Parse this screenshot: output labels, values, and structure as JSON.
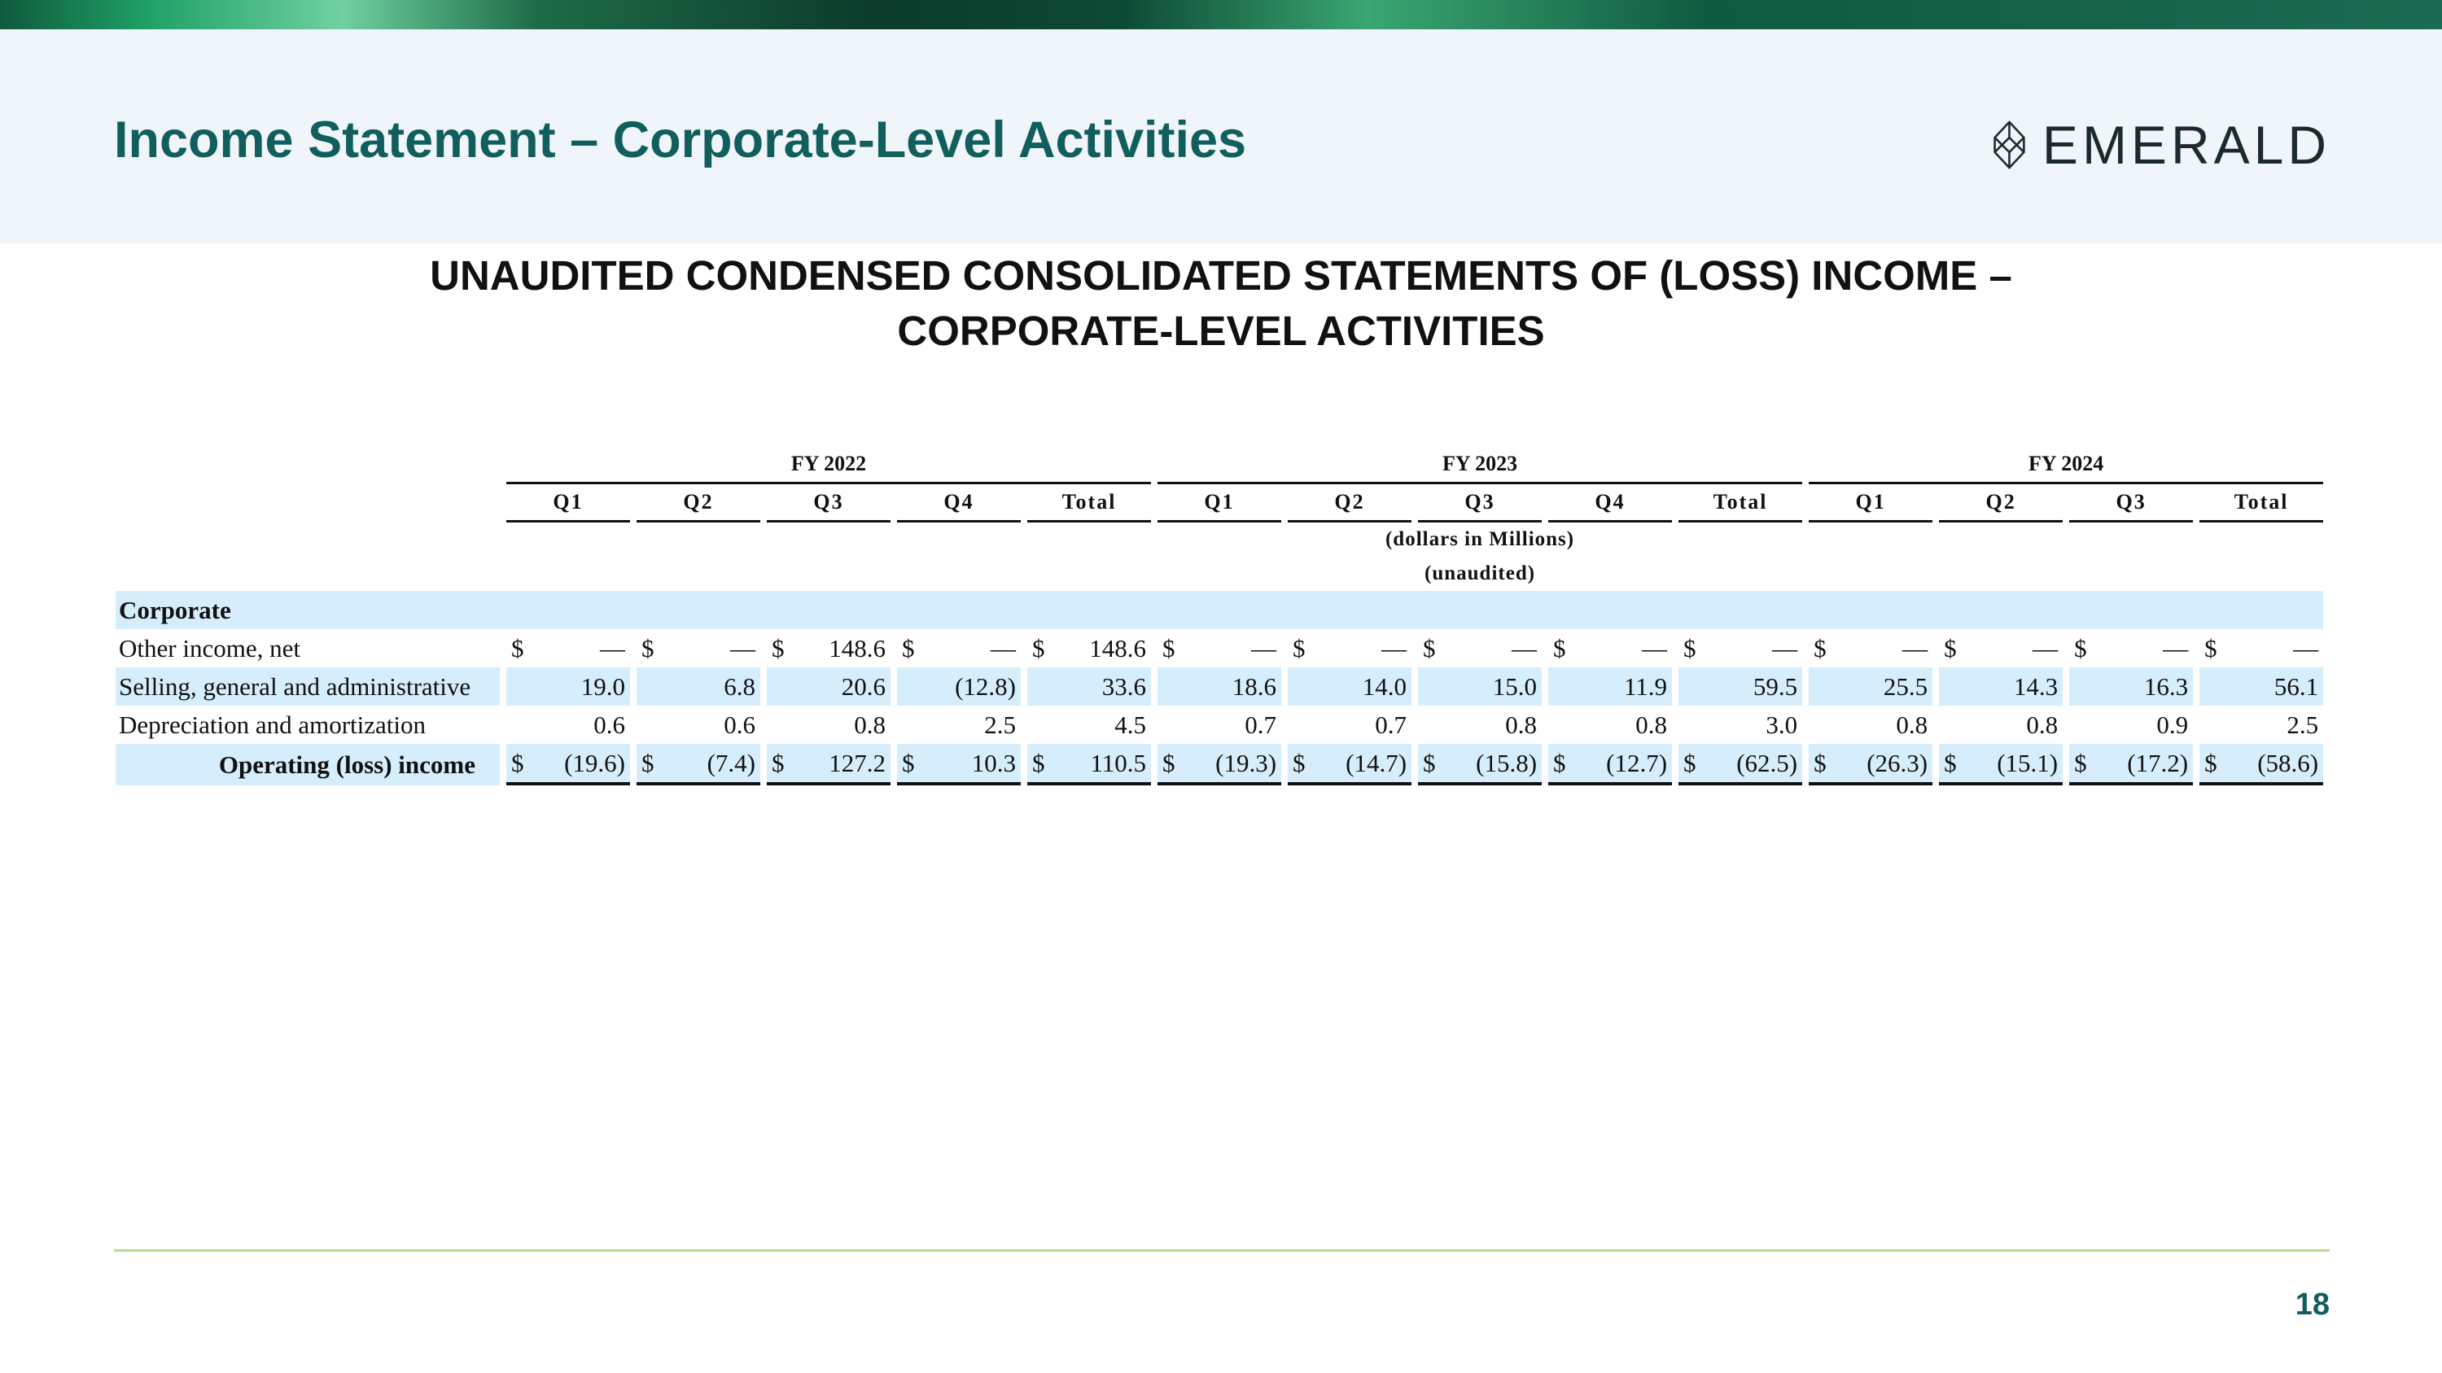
{
  "header": {
    "title": "Income Statement – Corporate-Level Activities",
    "logo_text": "EMERALD"
  },
  "statement_title_line1": "UNAUDITED CONDENSED CONSOLIDATED STATEMENTS OF (LOSS) INCOME –",
  "statement_title_line2": "CORPORATE-LEVEL ACTIVITIES",
  "table": {
    "fiscal_years": [
      "FY 2022",
      "FY 2023",
      "FY 2024"
    ],
    "columns": [
      "Q1",
      "Q2",
      "Q3",
      "Q4",
      "Total",
      "Q1",
      "Q2",
      "Q3",
      "Q4",
      "Total",
      "Q1",
      "Q2",
      "Q3",
      "Total"
    ],
    "units_line1": "(dollars in Millions)",
    "units_line2": "(unaudited)",
    "section_label": "Corporate",
    "rows": [
      {
        "label": "Other income, net",
        "currency": true,
        "values": [
          "—",
          "—",
          "148.6",
          "—",
          "148.6",
          "—",
          "—",
          "—",
          "—",
          "—",
          "—",
          "—",
          "—",
          "—"
        ]
      },
      {
        "label": "Selling, general and administrative",
        "currency": false,
        "values": [
          "19.0",
          "6.8",
          "20.6",
          "(12.8)",
          "33.6",
          "18.6",
          "14.0",
          "15.0",
          "11.9",
          "59.5",
          "25.5",
          "14.3",
          "16.3",
          "56.1"
        ]
      },
      {
        "label": "Depreciation and amortization",
        "currency": false,
        "values": [
          "0.6",
          "0.6",
          "0.8",
          "2.5",
          "4.5",
          "0.7",
          "0.7",
          "0.8",
          "0.8",
          "3.0",
          "0.8",
          "0.8",
          "0.9",
          "2.5"
        ]
      },
      {
        "label": "Operating (loss) income",
        "currency": true,
        "values": [
          "(19.6)",
          "(7.4)",
          "127.2",
          "10.3",
          "110.5",
          "(19.3)",
          "(14.7)",
          "(15.8)",
          "(12.7)",
          "(62.5)",
          "(26.3)",
          "(15.1)",
          "(17.2)",
          "(58.6)"
        ]
      }
    ],
    "currency_symbol": "$"
  },
  "page_number": "18",
  "colors": {
    "title_teal": "#115e5e",
    "row_highlight": "#d6eefb",
    "header_panel": "#eff5f8",
    "footer_line": "#b8dc8c"
  }
}
